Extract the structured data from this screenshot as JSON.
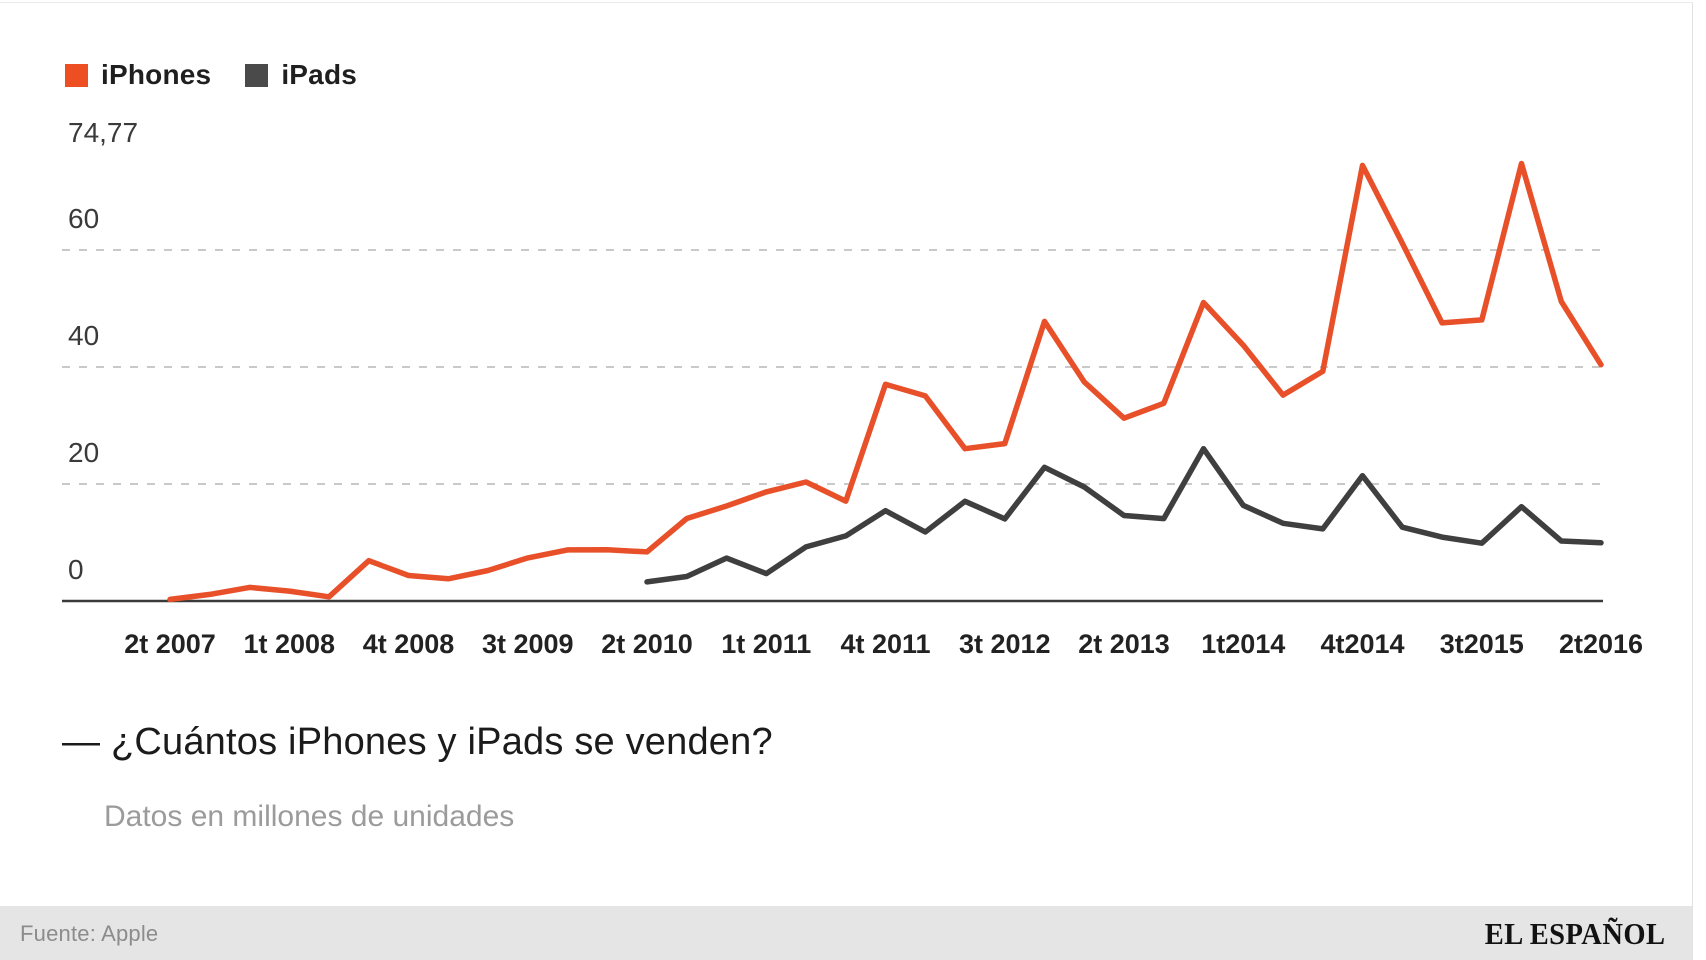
{
  "colors": {
    "iphone_orange": "#e8502a",
    "ipad_gray": "#3f3f3f",
    "legend_orange": "#ee4f22",
    "legend_gray": "#4a4a4a",
    "gridline": "#c9c9c9",
    "axis": "#3a3a3a",
    "footer_bg": "#e5e5e5"
  },
  "legend": {
    "items": [
      {
        "label": "iPhones",
        "color": "#ee4f22"
      },
      {
        "label": "iPads",
        "color": "#4a4a4a"
      }
    ]
  },
  "headline": {
    "title": "— ¿Cuántos iPhones y iPads se venden?",
    "subtitle": "Datos en millones de unidades"
  },
  "footer": {
    "source": "Fuente: Apple",
    "brand": "EL ESPAÑOL"
  },
  "chart_data": {
    "type": "line",
    "title": "¿Cuántos iPhones y iPads se venden?",
    "subtitle": "Datos en millones de unidades",
    "xlabel": "",
    "ylabel": "millones de unidades",
    "ylim": [
      0,
      74.77
    ],
    "grid": "dashed-horizontal",
    "legend_position": "top-left",
    "categories": [
      "2t 2007",
      "3t 2007",
      "4t 2007",
      "1t 2008",
      "2t 2008",
      "3t 2008",
      "4t 2008",
      "1t 2009",
      "2t 2009",
      "3t 2009",
      "4t 2009",
      "1t 2010",
      "2t 2010",
      "3t 2010",
      "4t 2010",
      "1t 2011",
      "2t 2011",
      "3t 2011",
      "4t 2011",
      "1t 2012",
      "2t 2012",
      "3t 2012",
      "4t 2012",
      "1t 2013",
      "2t 2013",
      "3t 2013",
      "4t 2013",
      "1t 2014",
      "2t 2014",
      "3t 2014",
      "4t 2014",
      "1t 2015",
      "2t 2015",
      "3t 2015",
      "4t 2015",
      "1t 2016",
      "2t 2016"
    ],
    "x_ticks": [
      {
        "label": "2t 2007",
        "index": 0
      },
      {
        "label": "1t 2008",
        "index": 3
      },
      {
        "label": "4t 2008",
        "index": 6
      },
      {
        "label": "3t 2009",
        "index": 9
      },
      {
        "label": "2t 2010",
        "index": 12
      },
      {
        "label": "1t 2011",
        "index": 15
      },
      {
        "label": "4t 2011",
        "index": 18
      },
      {
        "label": "3t 2012",
        "index": 21
      },
      {
        "label": "2t 2013",
        "index": 24
      },
      {
        "label": "1t2014",
        "index": 27
      },
      {
        "label": "4t2014",
        "index": 30
      },
      {
        "label": "3t2015",
        "index": 33
      },
      {
        "label": "2t2016",
        "index": 36
      }
    ],
    "y_axis": [
      {
        "label": "74,77",
        "value": 74.77,
        "gridline": false
      },
      {
        "label": "60",
        "value": 60,
        "gridline": true
      },
      {
        "label": "40",
        "value": 40,
        "gridline": true
      },
      {
        "label": "20",
        "value": 20,
        "gridline": true
      },
      {
        "label": "0",
        "value": 0,
        "gridline": false
      }
    ],
    "series": [
      {
        "name": "iPhones",
        "color": "#e8502a",
        "values": [
          0.27,
          1.12,
          2.32,
          1.7,
          0.72,
          6.89,
          4.36,
          3.79,
          5.21,
          7.37,
          8.74,
          8.75,
          8.4,
          14.1,
          16.24,
          18.65,
          20.34,
          17.07,
          37.04,
          35.06,
          26.03,
          26.91,
          47.79,
          37.43,
          31.24,
          33.8,
          51.03,
          43.72,
          35.2,
          39.27,
          74.47,
          61.17,
          47.53,
          48.05,
          74.78,
          51.19,
          40.4
        ]
      },
      {
        "name": "iPads",
        "color": "#3f3f3f",
        "values": [
          null,
          null,
          null,
          null,
          null,
          null,
          null,
          null,
          null,
          null,
          null,
          null,
          3.27,
          4.19,
          7.33,
          4.69,
          9.25,
          11.12,
          15.43,
          11.8,
          17.04,
          14.04,
          22.86,
          19.48,
          14.62,
          14.08,
          26.04,
          16.35,
          13.28,
          12.32,
          21.42,
          12.62,
          10.93,
          9.88,
          16.12,
          10.25,
          9.95
        ]
      }
    ]
  }
}
